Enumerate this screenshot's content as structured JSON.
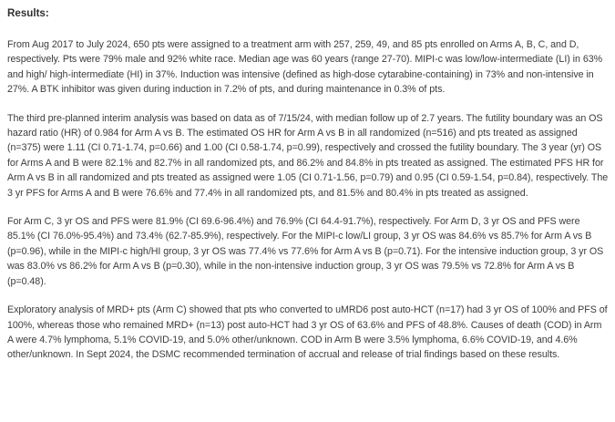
{
  "document": {
    "heading": "Results:",
    "paragraphs": [
      "From Aug 2017 to July 2024, 650 pts were assigned to a treatment arm with 257, 259, 49, and 85 pts enrolled on Arms A, B, C, and D, respectively. Pts were 79% male and 92% white race. Median age was 60 years (range 27-70). MIPI-c was low/low-intermediate (LI) in 63% and high/ high-intermediate (HI) in 37%. Induction was intensive (defined as high-dose cytarabine-containing) in 73% and non-intensive in 27%. A BTK inhibitor was given during induction in 7.2% of pts, and during maintenance in 0.3% of pts.",
      "The third pre-planned interim analysis was based on data as of 7/15/24, with median follow up of 2.7 years. The futility boundary was an OS hazard ratio (HR) of 0.984 for Arm A vs B. The estimated OS HR for Arm A vs B in all randomized (n=516) and pts treated as assigned (n=375) were 1.11 (CI 0.71-1.74, p=0.66) and 1.00 (CI 0.58-1.74, p=0.99), respectively and crossed the futility boundary. The 3 year (yr) OS for Arms A and B were 82.1% and 82.7% in all randomized pts, and 86.2% and 84.8% in pts treated as assigned. The estimated PFS HR for Arm A vs B in all randomized and pts treated as assigned were 1.05 (CI 0.71-1.56, p=0.79) and 0.95 (CI 0.59-1.54, p=0.84), respectively. The 3 yr PFS for Arms A and B were 76.6% and 77.4% in all randomized pts, and 81.5% and 80.4% in pts treated as assigned.",
      "For Arm C, 3 yr OS and PFS were 81.9% (CI 69.6-96.4%) and 76.9% (CI 64.4-91.7%), respectively. For Arm D, 3 yr OS and PFS were 85.1% (CI 76.0%-95.4%) and 73.4% (62.7-85.9%), respectively. For the MIPI-c low/LI group, 3 yr OS was 84.6% vs 85.7% for Arm A vs B (p=0.96), while in the MIPI-c high/HI group, 3 yr OS was 77.4% vs 77.6% for Arm A vs B (p=0.71). For the intensive induction group, 3 yr OS was 83.0% vs 86.2% for Arm A vs B (p=0.30), while in the non-intensive induction group, 3 yr OS was 79.5% vs 72.8% for Arm A vs B (p=0.48).",
      "Exploratory analysis of MRD+ pts (Arm C) showed that pts who converted to uMRD6 post auto-HCT (n=17) had 3 yr OS of 100% and PFS of 100%, whereas those who remained MRD+ (n=13) post auto-HCT had 3 yr OS of 63.6% and PFS of 48.8%. Causes of death (COD) in Arm A were 4.7% lymphoma, 5.1% COVID-19, and 5.0% other/unknown. COD in Arm B were 3.5% lymphoma, 6.6% COVID-19, and 4.6% other/unknown. In Sept 2024, the DSMC recommended termination of accrual and release of trial findings based on these results."
    ]
  }
}
